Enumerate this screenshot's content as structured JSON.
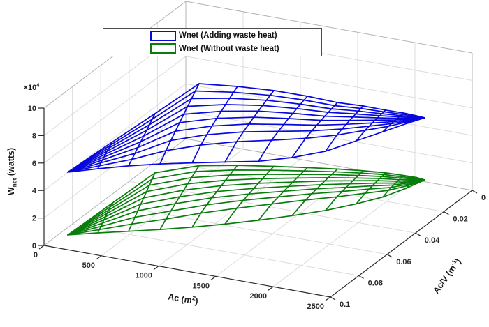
{
  "chart_data": {
    "type": "surface3d-wireframe",
    "title": "",
    "xlabel": "Ac (m^2)",
    "ylabel": "Ac/V (m^-1)",
    "zlabel": "W_net (watts)",
    "z_multiplier_text": "x10^4",
    "x_ticks": [
      0,
      500,
      1000,
      1500,
      2000,
      2500
    ],
    "y_ticks": [
      0,
      0.02,
      0.04,
      0.06,
      0.08,
      0.1
    ],
    "z_ticks": [
      0,
      2,
      4,
      6,
      8,
      10
    ],
    "x_range": [
      0,
      2500
    ],
    "y_range": [
      0,
      0.1
    ],
    "z_range": [
      0,
      100000
    ],
    "y_axis_reversed": true,
    "grid": true,
    "legend_position": "top-center",
    "legend": [
      {
        "label": "Wnet (Adding waste heat)",
        "color": "#0808dd"
      },
      {
        "label": "Wnet (Without waste heat)",
        "color": "#087d0c"
      }
    ],
    "style": {
      "axis_color": "#2a2a2a",
      "grid_color": "#dcdcdc",
      "box_color": "#b3b3b3",
      "tick_font_px": 11,
      "mesh_stroke_px": 1.7,
      "background": "#ffffff"
    },
    "projection": {
      "ox": 63,
      "oy": 352,
      "ax": 0.164,
      "ay": 0.0296,
      "bx": -2030,
      "by": 1530,
      "cz": -0.00197,
      "y_ref": 0.1,
      "z_top": 100000
    },
    "mesh": {
      "rows": 10,
      "cols": 13,
      "Ac": [
        100,
        300,
        500,
        700,
        900,
        1100,
        1300,
        1500,
        1700,
        1900,
        2100,
        2300,
        2500
      ],
      "front_r": [
        0.0913,
        0.0863,
        0.0808,
        0.0748,
        0.0683,
        0.0613,
        0.0538,
        0.0463,
        0.0388,
        0.0333,
        0.0307,
        0.0302,
        0.0335
      ],
      "back_r": [
        0.0913,
        0.0765,
        0.0621,
        0.0472,
        0.0363,
        0.0268,
        0.0193,
        0.0143,
        0.0122,
        0.0126,
        0.016,
        0.0233,
        0.0335
      ],
      "exp_w": [
        1,
        1,
        0.95,
        0.8,
        0.6,
        0.5,
        0.42,
        0.38,
        0.36,
        0.36,
        0.4,
        0.5,
        1
      ],
      "exp_r": [
        1,
        1,
        0.95,
        0.85,
        0.75,
        0.65,
        0.6,
        0.55,
        0.55,
        0.55,
        0.6,
        0.65,
        1
      ]
    },
    "surfaces": [
      {
        "name": "Wnet (Adding waste heat)",
        "color": "#0808dd",
        "w_unit": 10000,
        "front_w": [
          4.81,
          4.97,
          5.05,
          5.03,
          4.9,
          4.72,
          4.49,
          4.48,
          4.66,
          5.29,
          6.05,
          6.91,
          7.88
        ],
        "back_w": [
          4.81,
          6.13,
          7.4,
          8.73,
          7.98,
          7.24,
          6.55,
          6.0,
          5.89,
          5.92,
          6.27,
          6.94,
          7.88
        ]
      },
      {
        "name": "Wnet (Without waste heat)",
        "color": "#087d0c",
        "w_unit": 10000,
        "front_w": [
          0.24,
          0.3,
          0.29,
          0.25,
          0.22,
          0.2,
          0.2,
          0.25,
          0.35,
          0.7,
          1.3,
          2.2,
          3.36
        ],
        "back_w": [
          0.24,
          1.67,
          3.09,
          2.76,
          2.24,
          1.73,
          1.35,
          1.16,
          1.17,
          1.35,
          1.73,
          2.45,
          3.36
        ]
      }
    ]
  },
  "labels": {
    "x": {
      "main": "Ac (m",
      "sup": "2",
      "end": ")"
    },
    "y": {
      "main": "Ac/V (m",
      "sup": "-1",
      "end": ")"
    },
    "z": {
      "main": "W",
      "sub": "net",
      "end": " (watts)"
    },
    "z_exp": {
      "main": "×10",
      "sup": "4"
    }
  }
}
